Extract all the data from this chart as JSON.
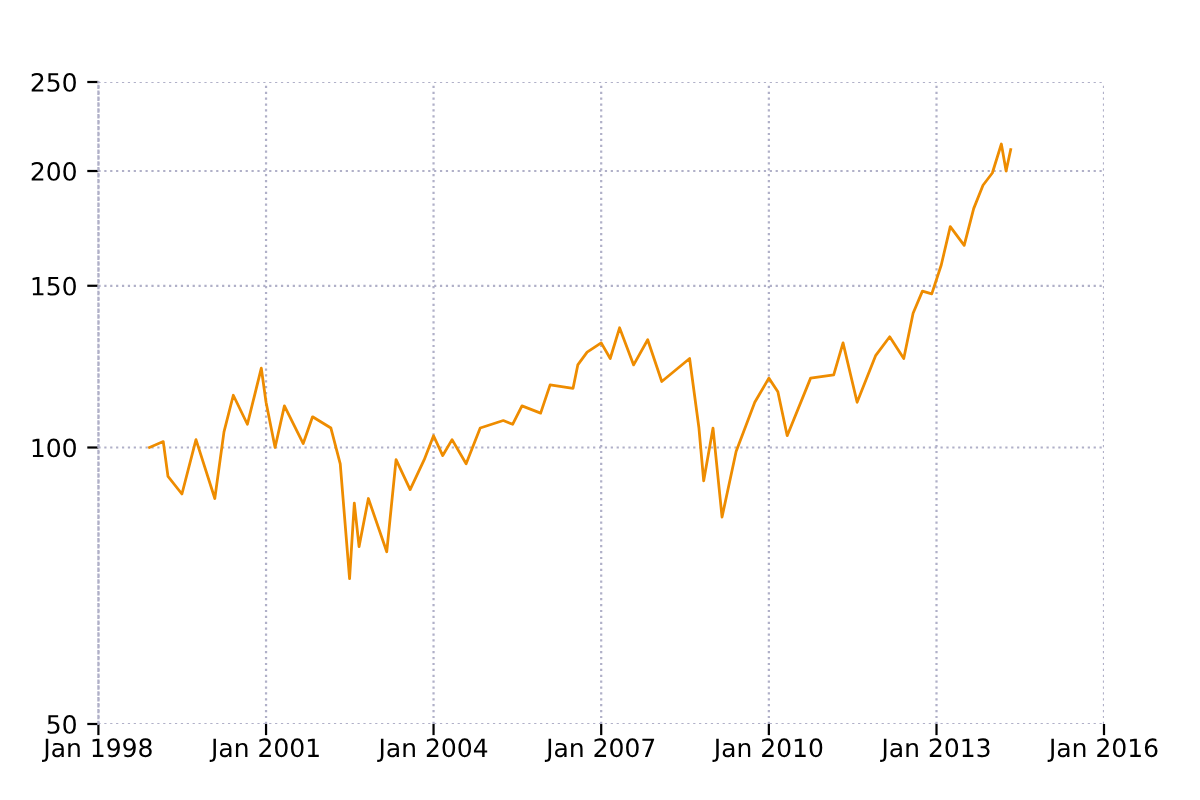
{
  "chart_data": {
    "type": "line",
    "log": "y",
    "grid": true,
    "marker": "none",
    "line_style": "solid",
    "xlim": [
      "1998-01",
      "2016-01"
    ],
    "xticks": [
      {
        "value": "1998-01",
        "label": "Jan 1998"
      },
      {
        "value": "2001-01",
        "label": "Jan 2001"
      },
      {
        "value": "2004-01",
        "label": "Jan 2004"
      },
      {
        "value": "2007-01",
        "label": "Jan 2007"
      },
      {
        "value": "2010-01",
        "label": "Jan 2010"
      },
      {
        "value": "2013-01",
        "label": "Jan 2013"
      },
      {
        "value": "2016-01",
        "label": "Jan 2016"
      }
    ],
    "ylim": [
      50,
      250
    ],
    "yticks": [
      50,
      100,
      150,
      200,
      250
    ],
    "x": [
      "1998-12",
      "1999-03",
      "1999-04",
      "1999-07",
      "1999-10",
      "2000-02",
      "2000-04",
      "2000-06",
      "2000-09",
      "2000-12",
      "2001-01",
      "2001-03",
      "2001-05",
      "2001-09",
      "2001-11",
      "2002-03",
      "2002-05",
      "2002-07",
      "2002-08",
      "2002-09",
      "2002-11",
      "2003-03",
      "2003-05",
      "2003-08",
      "2003-11",
      "2004-01",
      "2004-03",
      "2004-05",
      "2004-08",
      "2004-11",
      "2005-04",
      "2005-06",
      "2005-08",
      "2005-12",
      "2006-02",
      "2006-07",
      "2006-08",
      "2006-10",
      "2007-01",
      "2007-03",
      "2007-05",
      "2007-08",
      "2007-11",
      "2008-02",
      "2008-08",
      "2008-10",
      "2008-11",
      "2009-01",
      "2009-03",
      "2009-06",
      "2009-10",
      "2010-01",
      "2010-03",
      "2010-05",
      "2010-10",
      "2011-03",
      "2011-05",
      "2011-08",
      "2011-12",
      "2012-03",
      "2012-06",
      "2012-08",
      "2012-10",
      "2012-12",
      "2013-02",
      "2013-04",
      "2013-07",
      "2013-09",
      "2013-11",
      "2014-01",
      "2014-03",
      "2014-04",
      "2014-05"
    ],
    "series": [
      {
        "color": "#ee8c00",
        "values": [
          100,
          101.5,
          93,
          89,
          102,
          88,
          104,
          114,
          106,
          122,
          112,
          100,
          111,
          101,
          108,
          105,
          96,
          72,
          87,
          78,
          88,
          77,
          97,
          90,
          97,
          103,
          98,
          102,
          96,
          105,
          107,
          106,
          111,
          109,
          117,
          116,
          123,
          127,
          130,
          125,
          135,
          123,
          131,
          118,
          125,
          105,
          92,
          105,
          84,
          99,
          112,
          119,
          115,
          103,
          119,
          120,
          130,
          112,
          126,
          132,
          125,
          140,
          148,
          147,
          158,
          174,
          166,
          182,
          193,
          199,
          214,
          200,
          211
        ]
      }
    ]
  }
}
